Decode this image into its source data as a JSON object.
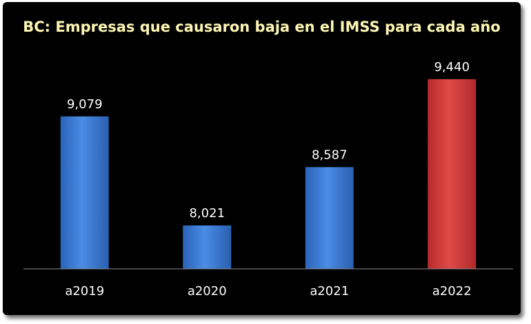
{
  "chart_data": {
    "type": "bar",
    "title": "BC: Empresas que causaron baja en el IMSS para cada año",
    "categories": [
      "a2019",
      "a2020",
      "a2021",
      "a2022"
    ],
    "values": [
      9079,
      8021,
      8587,
      9440
    ],
    "value_labels": [
      "9,079",
      "8,021",
      "8,587",
      "9,440"
    ],
    "bar_colors": [
      "#3d7fd6",
      "#3d7fd6",
      "#3d7fd6",
      "#d63d3d"
    ],
    "xlabel": "",
    "ylabel": "",
    "ylim": [
      7600,
      9800
    ],
    "grid": false,
    "legend": "none"
  },
  "colors": {
    "background": "#000000",
    "title": "#fdf6b3",
    "text": "#ffffff",
    "axis": "#8c8c8c"
  }
}
